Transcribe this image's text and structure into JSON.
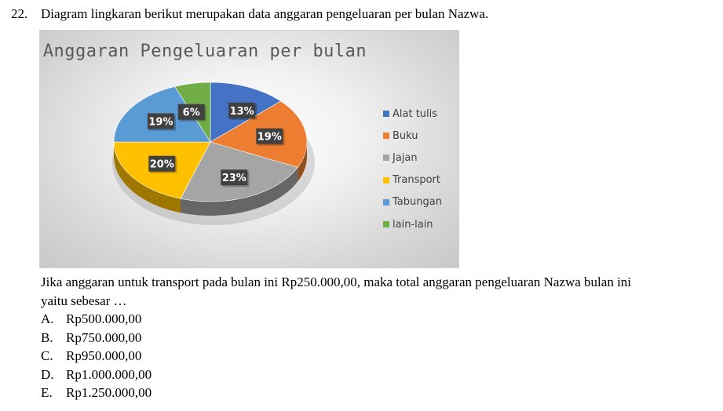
{
  "question": {
    "number": "22.",
    "text": "Diagram lingkaran berikut merupakan data anggaran pengeluaran per bulan Nazwa.",
    "body_line1": "Jika anggaran untuk transport pada bulan ini Rp250.000,00, maka total anggaran pengeluaran Nazwa bulan ini",
    "body_line2": "yaitu sebesar …"
  },
  "options": [
    {
      "letter": "A.",
      "text": "Rp500.000,00"
    },
    {
      "letter": "B.",
      "text": "Rp750.000,00"
    },
    {
      "letter": "C.",
      "text": "Rp950.000,00"
    },
    {
      "letter": "D.",
      "text": "Rp1.000.000,00"
    },
    {
      "letter": "E.",
      "text": "Rp1.250.000,00"
    }
  ],
  "chart_data": {
    "type": "pie",
    "title": "Anggaran Pengeluaran per bulan",
    "legend_position": "right",
    "style": "3d",
    "categories": [
      "Alat tulis",
      "Buku",
      "Jajan",
      "Transport",
      "Tabungan",
      "lain-lain"
    ],
    "values": [
      13,
      19,
      23,
      20,
      19,
      6
    ],
    "labels": [
      "13%",
      "19%",
      "23%",
      "20%",
      "19%",
      "6%"
    ],
    "colors": [
      "#4472C4",
      "#ED7D31",
      "#A5A5A5",
      "#FFC000",
      "#5B9BD5",
      "#70AD47"
    ]
  }
}
